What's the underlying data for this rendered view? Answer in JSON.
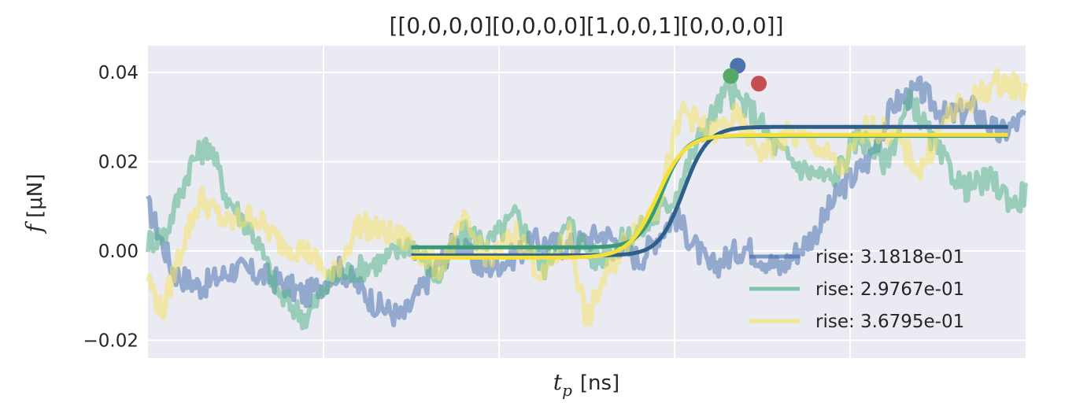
{
  "chart_data": {
    "type": "line",
    "title": "[[0,0,0,0][0,0,0,0][1,0,0,1][0,0,0,0]]",
    "xlabel_main": "t",
    "xlabel_sub": "p",
    "xlabel_unit": "[ns]",
    "ylabel_main": "f",
    "ylabel_unit": "[μN]",
    "xlim": [
      0,
      5
    ],
    "ylim": [
      -0.024,
      0.046
    ],
    "yticks": [
      -0.02,
      0.0,
      0.02,
      0.04
    ],
    "ytick_labels": [
      "−0.02",
      "0.00",
      "0.02",
      "0.04"
    ],
    "xgrid": [
      1,
      2,
      3,
      4
    ],
    "grid": true,
    "background": "#eaeaf2",
    "legend_position": "lower-right",
    "series": [
      {
        "name": "rise: 3.1818e-01",
        "color": "#4c72b0",
        "fit_color": "#2e5f8a",
        "noise_points": [
          [
            0.0,
            0.01
          ],
          [
            0.15,
            -0.005
          ],
          [
            0.3,
            -0.008
          ],
          [
            0.5,
            -0.004
          ],
          [
            0.7,
            -0.006
          ],
          [
            0.9,
            -0.01
          ],
          [
            1.1,
            -0.004
          ],
          [
            1.3,
            -0.012
          ],
          [
            1.45,
            -0.015
          ],
          [
            1.6,
            -0.006
          ],
          [
            1.75,
            0.002
          ],
          [
            1.9,
            -0.004
          ],
          [
            2.05,
            -0.002
          ],
          [
            2.2,
            0.002
          ],
          [
            2.4,
            0.001
          ],
          [
            2.6,
            0.004
          ],
          [
            2.8,
            -0.002
          ],
          [
            3.0,
            0.008
          ],
          [
            3.2,
            -0.004
          ],
          [
            3.4,
            0.001
          ],
          [
            3.6,
            -0.004
          ],
          [
            3.8,
            0.004
          ],
          [
            3.95,
            0.014
          ],
          [
            4.1,
            0.02
          ],
          [
            4.25,
            0.033
          ],
          [
            4.4,
            0.036
          ],
          [
            4.55,
            0.03
          ],
          [
            4.7,
            0.032
          ],
          [
            4.85,
            0.026
          ],
          [
            5.0,
            0.03
          ]
        ],
        "fit": {
          "x_start": 1.5,
          "x_end": 4.9,
          "low": -0.001,
          "high": 0.0278,
          "center": 3.05,
          "width": 0.07
        },
        "peak": {
          "x": 3.36,
          "y": 0.0415,
          "color": "#4c72b0"
        }
      },
      {
        "name": "rise: 2.9767e-01",
        "color": "#55b48a",
        "fit_color": "#3a9a78",
        "noise_points": [
          [
            0.0,
            0.002
          ],
          [
            0.1,
            0.004
          ],
          [
            0.25,
            0.02
          ],
          [
            0.35,
            0.024
          ],
          [
            0.45,
            0.012
          ],
          [
            0.6,
            0.004
          ],
          [
            0.75,
            -0.01
          ],
          [
            0.9,
            -0.015
          ],
          [
            1.05,
            -0.006
          ],
          [
            1.2,
            -0.004
          ],
          [
            1.35,
            -0.002
          ],
          [
            1.5,
            0.002
          ],
          [
            1.65,
            -0.006
          ],
          [
            1.8,
            0.004
          ],
          [
            1.95,
            0.002
          ],
          [
            2.1,
            0.008
          ],
          [
            2.25,
            -0.004
          ],
          [
            2.4,
            0.006
          ],
          [
            2.55,
            -0.002
          ],
          [
            2.7,
            0.002
          ],
          [
            2.85,
            0.006
          ],
          [
            3.0,
            0.012
          ],
          [
            3.15,
            0.026
          ],
          [
            3.3,
            0.036
          ],
          [
            3.45,
            0.031
          ],
          [
            3.6,
            0.022
          ],
          [
            3.75,
            0.018
          ],
          [
            3.9,
            0.016
          ],
          [
            4.05,
            0.026
          ],
          [
            4.2,
            0.02
          ],
          [
            4.35,
            0.034
          ],
          [
            4.5,
            0.022
          ],
          [
            4.65,
            0.014
          ],
          [
            4.8,
            0.016
          ],
          [
            4.95,
            0.01
          ],
          [
            5.0,
            0.014
          ]
        ],
        "fit": {
          "x_start": 1.5,
          "x_end": 4.9,
          "low": 0.0008,
          "high": 0.0258,
          "center": 2.93,
          "width": 0.065
        },
        "peak": {
          "x": 3.32,
          "y": 0.0392,
          "color": "#55a868"
        }
      },
      {
        "name": "rise: 3.6795e-01",
        "color": "#f2e26a",
        "fit_color": "#f5e03a",
        "noise_points": [
          [
            0.0,
            -0.006
          ],
          [
            0.08,
            -0.014
          ],
          [
            0.2,
            0.002
          ],
          [
            0.3,
            0.012
          ],
          [
            0.45,
            0.006
          ],
          [
            0.6,
            0.008
          ],
          [
            0.75,
            0.002
          ],
          [
            0.9,
            0.0
          ],
          [
            1.05,
            -0.006
          ],
          [
            1.2,
            0.006
          ],
          [
            1.35,
            0.004
          ],
          [
            1.5,
            0.002
          ],
          [
            1.65,
            -0.004
          ],
          [
            1.8,
            0.006
          ],
          [
            1.95,
            -0.002
          ],
          [
            2.1,
            0.004
          ],
          [
            2.25,
            -0.006
          ],
          [
            2.4,
            0.004
          ],
          [
            2.5,
            -0.016
          ],
          [
            2.6,
            -0.006
          ],
          [
            2.75,
            0.004
          ],
          [
            2.9,
            0.01
          ],
          [
            3.05,
            0.032
          ],
          [
            3.2,
            0.026
          ],
          [
            3.35,
            0.03
          ],
          [
            3.5,
            0.022
          ],
          [
            3.65,
            0.026
          ],
          [
            3.8,
            0.024
          ],
          [
            3.95,
            0.018
          ],
          [
            4.1,
            0.028
          ],
          [
            4.25,
            0.026
          ],
          [
            4.4,
            0.018
          ],
          [
            4.55,
            0.03
          ],
          [
            4.7,
            0.034
          ],
          [
            4.85,
            0.038
          ],
          [
            5.0,
            0.036
          ]
        ],
        "fit": {
          "x_start": 1.5,
          "x_end": 4.9,
          "low": -0.0015,
          "high": 0.026,
          "center": 2.9,
          "width": 0.08
        },
        "peak": {
          "x": 3.48,
          "y": 0.0375,
          "color": "#c44e52"
        }
      }
    ]
  }
}
